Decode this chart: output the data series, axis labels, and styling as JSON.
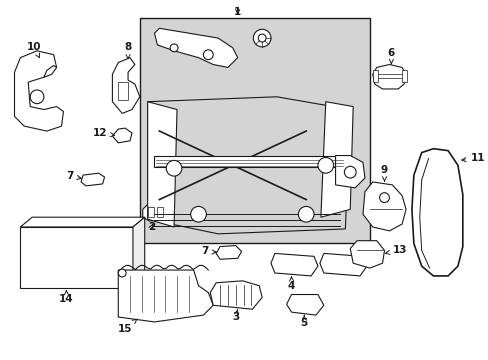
{
  "background_color": "#ffffff",
  "line_color": "#1a1a1a",
  "shade_color": "#d4d4d4",
  "figsize": [
    4.89,
    3.6
  ],
  "dpi": 100
}
